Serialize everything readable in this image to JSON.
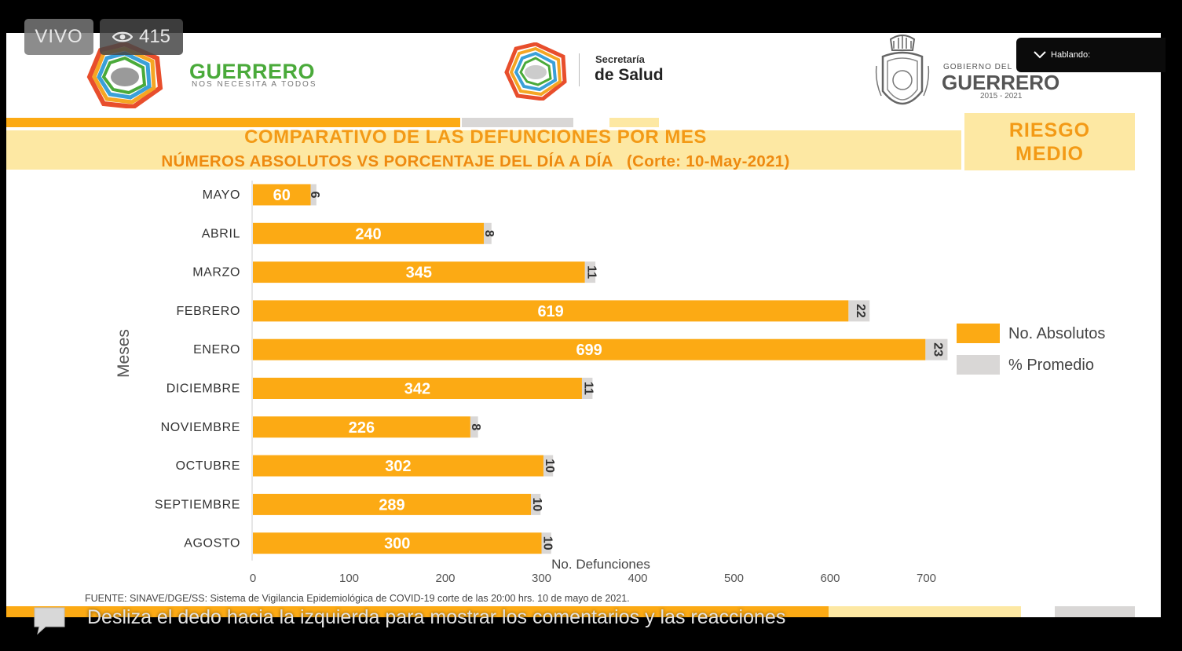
{
  "overlay": {
    "live_label": "VIVO",
    "viewer_count": "415",
    "speaking_label": "Hablando:",
    "comments_hint": "Desliza el dedo hacia la izquierda para mostrar los comentarios y las reacciones"
  },
  "header": {
    "guerrero_title": "GUERRERO",
    "guerrero_subtitle": "NOS NECESITA A TODOS",
    "salud_line1": "Secretaría",
    "salud_line2": "de Salud",
    "gobierno_line1": "GOBIERNO DEL",
    "gobierno_line2": "GUERRERO",
    "gobierno_years": "2015 - 2021"
  },
  "slide": {
    "title_line1": "COMPARATIVO DE LAS DEFUNCIONES POR MES",
    "title_line2": "NÚMEROS ABSOLUTOS VS PORCENTAJE DEL DÍA A DÍA   (Corte: 10-May-2021)",
    "risk_line1": "RIESGO",
    "risk_line2": "MEDIO",
    "source": "FUENTE: SINAVE/DGE/SS: Sistema de Vigilancia Epidemiológica de COVID-19 corte de las 20:00 hrs. 10 de mayo  de 2021."
  },
  "colors": {
    "orange": "#fcaa14",
    "gray": "#d9d7d6",
    "title_orange": "#f39a16",
    "band_yellow": "#fde8a3",
    "green": "#4aaa3a"
  },
  "chart_data": {
    "type": "bar",
    "orientation": "horizontal",
    "categories": [
      "MAYO",
      "ABRIL",
      "MARZO",
      "FEBRERO",
      "ENERO",
      "DICIEMBRE",
      "NOVIEMBRE",
      "OCTUBRE",
      "SEPTIEMBRE",
      "AGOSTO"
    ],
    "series": [
      {
        "name": "No. Absolutos",
        "values": [
          60,
          240,
          345,
          619,
          699,
          342,
          226,
          302,
          289,
          300
        ]
      },
      {
        "name": "% Promedio",
        "values": [
          6,
          8,
          11,
          22,
          23,
          11,
          8,
          10,
          10,
          10
        ]
      }
    ],
    "xlabel": "No. Defunciones",
    "ylabel": "Meses",
    "xlim": [
      0,
      700
    ],
    "xticks": [
      0,
      100,
      200,
      300,
      400,
      500,
      600,
      700
    ],
    "stacked": true,
    "legend": "right"
  }
}
